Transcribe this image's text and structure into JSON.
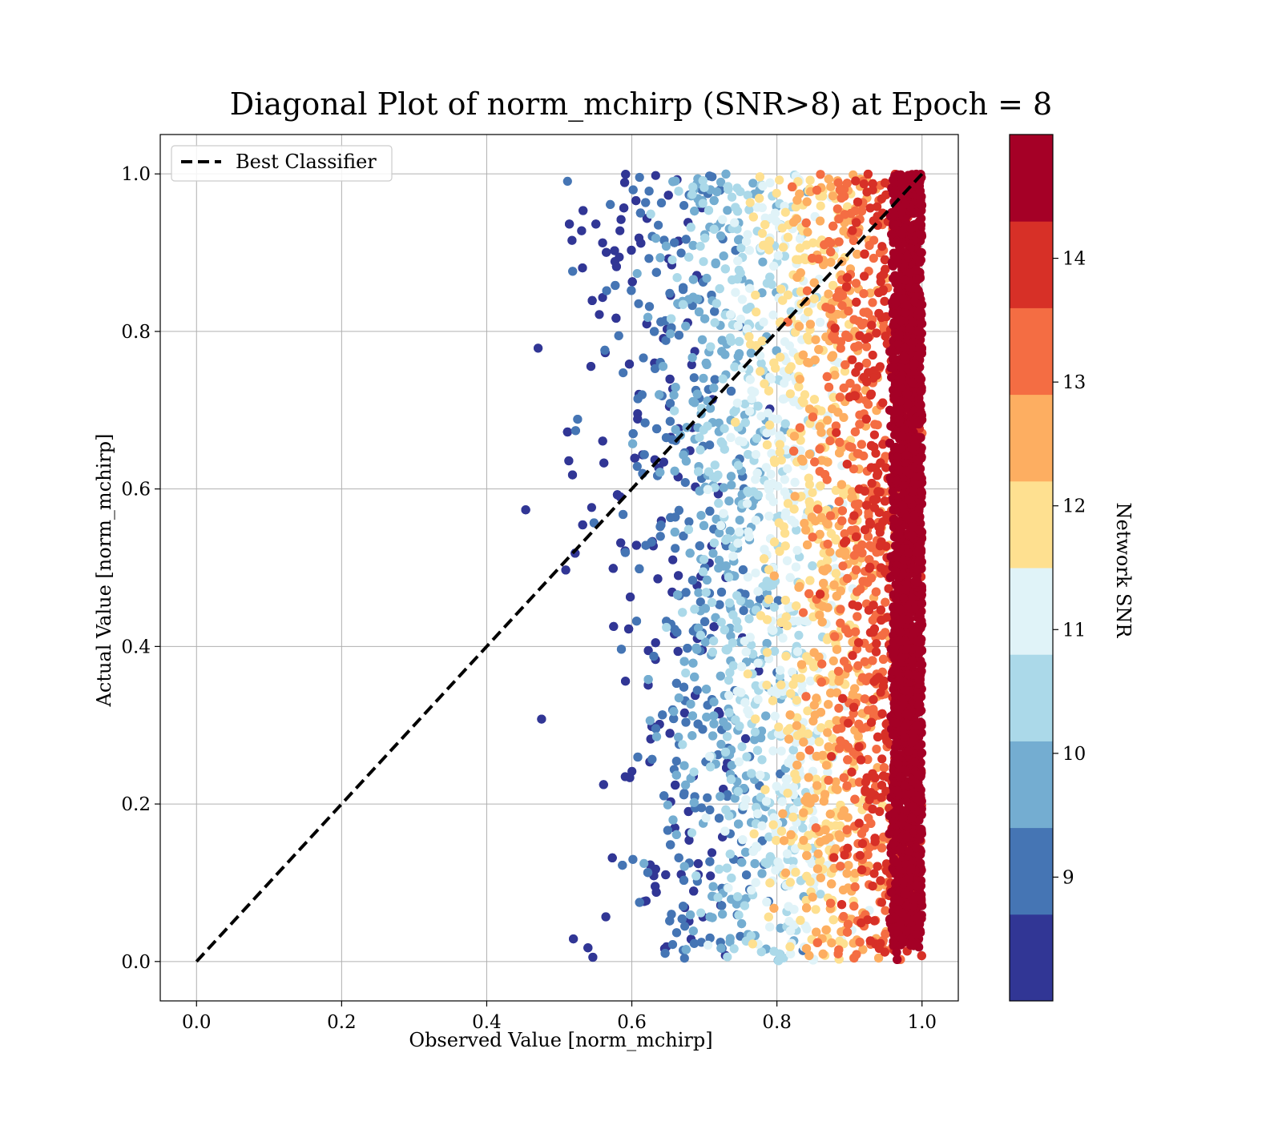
{
  "chart_data": {
    "type": "scatter",
    "title": "Diagonal Plot of norm_mchirp (SNR>8) at Epoch = 8",
    "xlabel": "Observed Value [norm_mchirp]",
    "ylabel": "Actual Value [norm_mchirp]",
    "xlim": [
      -0.05,
      1.05
    ],
    "ylim": [
      -0.05,
      1.05
    ],
    "xticks": [
      "0.0",
      "0.2",
      "0.4",
      "0.6",
      "0.8",
      "1.0"
    ],
    "yticks": [
      "0.0",
      "0.2",
      "0.4",
      "0.6",
      "0.8",
      "1.0"
    ],
    "grid": true,
    "legend": {
      "placement": "upper-left",
      "entries": [
        {
          "label": "Best Classifier",
          "style": "dashed",
          "color": "#000000"
        }
      ]
    },
    "reference_line": {
      "x": [
        0.0,
        1.0
      ],
      "y": [
        0.0,
        1.0
      ],
      "style": "dashed",
      "color": "#000000"
    },
    "colorbar": {
      "label": "Network SNR",
      "range": [
        8.0,
        15.0
      ],
      "ticks": [
        "9",
        "10",
        "11",
        "12",
        "13",
        "14"
      ],
      "levels": [
        "#313695",
        "#4575b4",
        "#74add1",
        "#abd9e9",
        "#e0f3f8",
        "#fee090",
        "#fdae61",
        "#f46d43",
        "#d73027",
        "#a50026"
      ]
    },
    "point_cloud": {
      "x_range": [
        0.45,
        1.0
      ],
      "y_range": [
        0.0,
        1.0
      ],
      "snr_range": [
        8.0,
        15.0
      ],
      "trend": "points cluster near observed value 1.0 with high SNR; lower SNR points spread to lower observed values",
      "count": 6500
    }
  }
}
